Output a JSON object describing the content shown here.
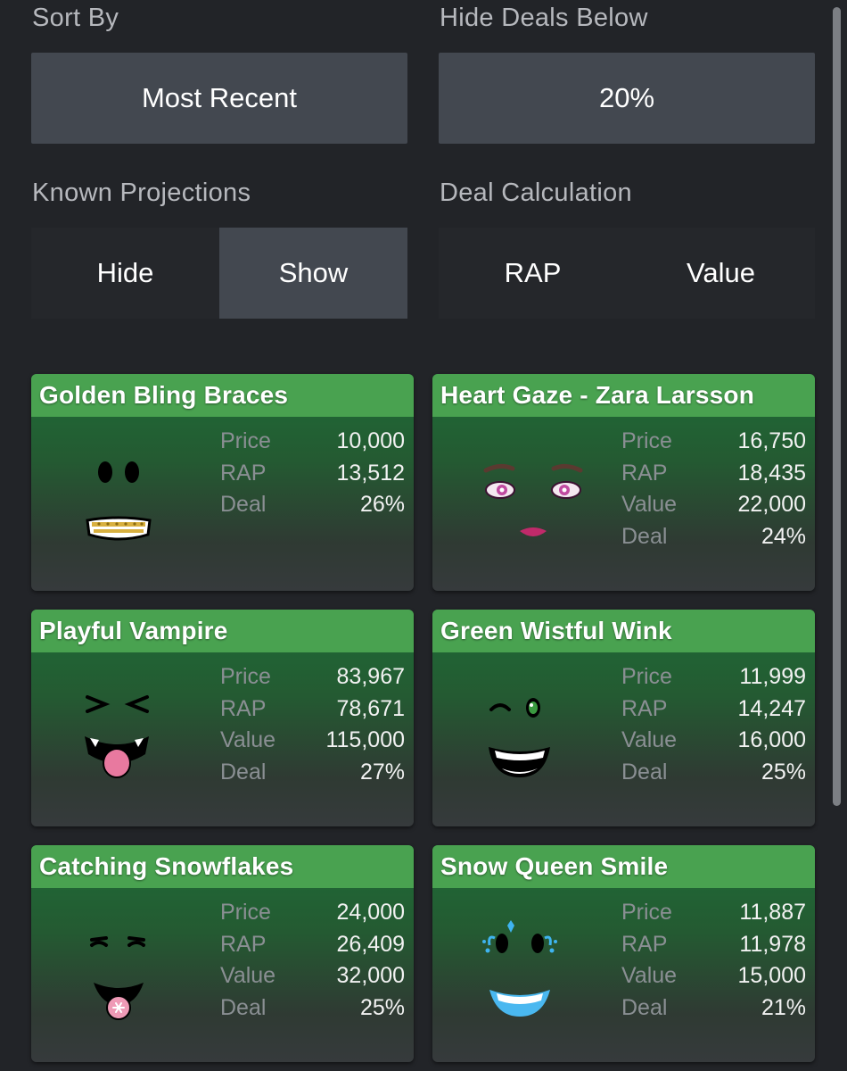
{
  "filters": {
    "sort_by": {
      "label": "Sort By",
      "value": "Most Recent"
    },
    "hide_deals_below": {
      "label": "Hide Deals Below",
      "value": "20%"
    },
    "known_projections": {
      "label": "Known Projections",
      "options": [
        "Hide",
        "Show"
      ],
      "selected": "Show"
    },
    "deal_calculation": {
      "label": "Deal Calculation",
      "options": [
        "RAP",
        "Value"
      ],
      "selected": "none"
    }
  },
  "stat_labels": {
    "price": "Price",
    "rap": "RAP",
    "value": "Value",
    "deal": "Deal"
  },
  "items": [
    {
      "name": "Golden Bling Braces",
      "price": "10,000",
      "rap": "13,512",
      "deal": "26%",
      "icon": "face-golden-braces-icon"
    },
    {
      "name": "Heart Gaze - Zara Larsson",
      "price": "16,750",
      "rap": "18,435",
      "value": "22,000",
      "deal": "24%",
      "icon": "face-heart-gaze-icon"
    },
    {
      "name": "Playful Vampire",
      "price": "83,967",
      "rap": "78,671",
      "value": "115,000",
      "deal": "27%",
      "icon": "face-playful-vampire-icon"
    },
    {
      "name": "Green Wistful Wink",
      "price": "11,999",
      "rap": "14,247",
      "value": "16,000",
      "deal": "25%",
      "icon": "face-green-wink-icon"
    },
    {
      "name": "Catching Snowflakes",
      "price": "24,000",
      "rap": "26,409",
      "value": "32,000",
      "deal": "25%",
      "icon": "face-snowflakes-icon"
    },
    {
      "name": "Snow Queen Smile",
      "price": "11,887",
      "rap": "11,978",
      "value": "15,000",
      "deal": "21%",
      "icon": "face-snow-queen-icon"
    }
  ],
  "colors": {
    "card_header": "#49a250",
    "background": "#222428",
    "button": "#434850"
  }
}
